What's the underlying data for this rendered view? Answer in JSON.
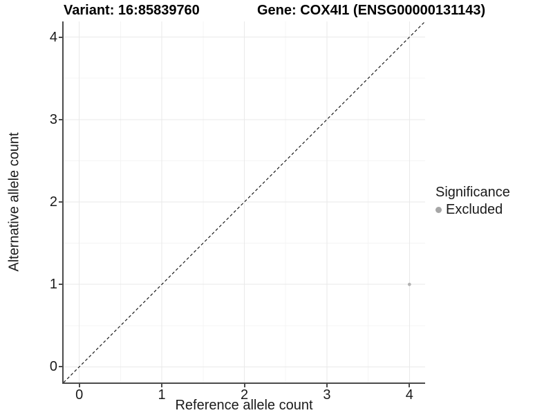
{
  "titles": {
    "left": "Variant: 16:85839760",
    "right": "Gene: COX4I1 (ENSG00000131143)"
  },
  "chart_data": {
    "type": "scatter",
    "xlabel": "Reference allele count",
    "ylabel": "Alternative allele count",
    "x_ticks": [
      0,
      1,
      2,
      3,
      4
    ],
    "y_ticks": [
      0,
      1,
      2,
      3,
      4
    ],
    "x_minor_ticks": [
      0.5,
      1.5,
      2.5,
      3.5
    ],
    "y_minor_ticks": [
      0.5,
      1.5,
      2.5,
      3.5
    ],
    "xlim": [
      -0.19,
      4.19
    ],
    "ylim": [
      -0.19,
      4.19
    ],
    "grid": "major+minor",
    "identity_line": {
      "style": "dashed",
      "from": [
        -0.19,
        -0.19
      ],
      "to": [
        4.19,
        4.19
      ],
      "color": "#1a1a1a"
    },
    "points": [
      {
        "x": 4,
        "y": 1,
        "series": "Excluded",
        "color": "#b3b3b3",
        "radius": 2.4
      }
    ],
    "legend": {
      "title": "Significance",
      "position": "right",
      "items": [
        {
          "label": "Excluded",
          "color": "#a6a6a6"
        }
      ]
    }
  },
  "colors": {
    "grid_major": "#e9e9e9",
    "grid_minor": "#f4f4f4",
    "axis_line": "#4a4a4a"
  }
}
